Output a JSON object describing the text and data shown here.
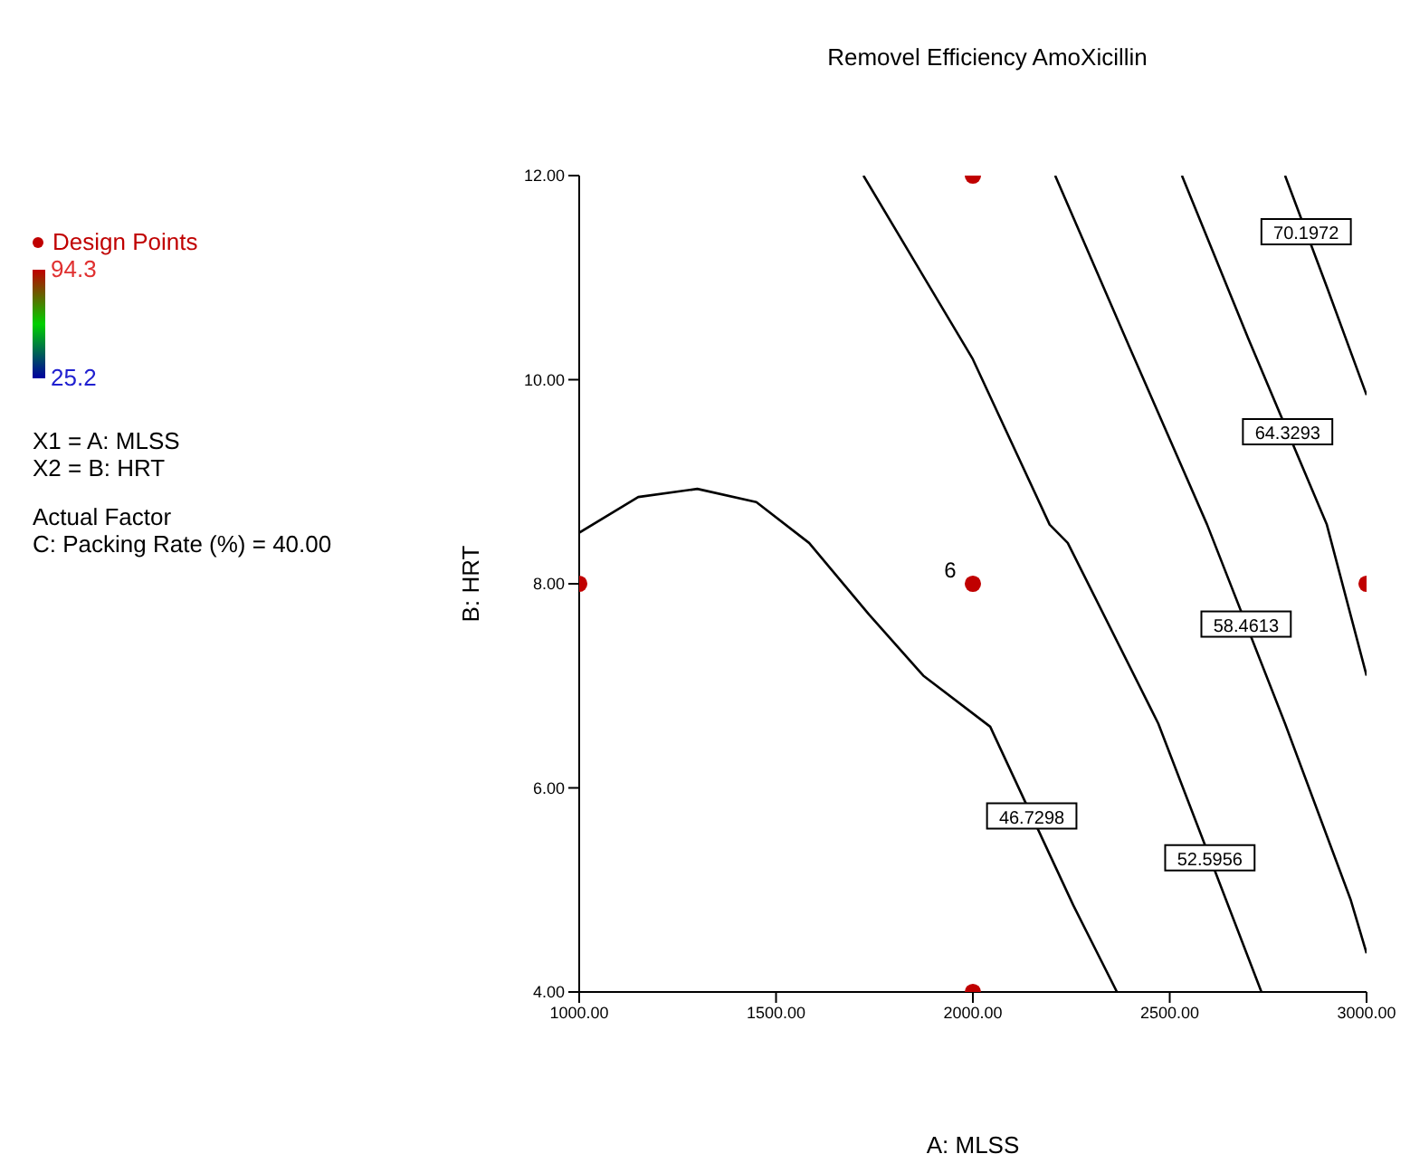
{
  "chart_data": {
    "type": "line",
    "title": "Removel Efficiency AmoXicillin",
    "xlabel": "A: MLSS",
    "ylabel": "B: HRT",
    "clim": [
      25.2,
      94.3
    ],
    "cticks": [
      25.2,
      94.3
    ],
    "xlim": [
      1000,
      3000
    ],
    "xticks": [
      {
        "value": 1000,
        "label": "1000.00"
      },
      {
        "value": 1500,
        "label": "1500.00"
      },
      {
        "value": 2000,
        "label": "2000.00"
      },
      {
        "value": 2500,
        "label": "2500.00"
      },
      {
        "value": 3000,
        "label": "3000.00"
      }
    ],
    "ylim": [
      4,
      12
    ],
    "yticks": [
      {
        "value": 4,
        "label": "4.00"
      },
      {
        "value": 6,
        "label": "6.00"
      },
      {
        "value": 8,
        "label": "8.00"
      },
      {
        "value": 10,
        "label": "10.00"
      },
      {
        "value": 12,
        "label": "12.00"
      }
    ],
    "grid": false,
    "legend": "left",
    "marker": "none",
    "line_style": "solid",
    "series": [
      {
        "name": "46.7298",
        "color": "#000000",
        "x": [
          1000,
          1150,
          1300,
          1450,
          1584,
          1736,
          1874,
          2044,
          2255,
          2366
        ],
        "values": [
          8.5,
          8.85,
          8.93,
          8.8,
          8.4,
          7.7,
          7.1,
          6.6,
          4.85,
          4.0
        ]
      },
      {
        "name": "52.5956",
        "color": "#000000",
        "x": [
          1722,
          2000,
          2195,
          2241,
          2471,
          2733
        ],
        "values": [
          12,
          10.2,
          8.58,
          8.4,
          6.63,
          4.0
        ]
      },
      {
        "name": "58.4613",
        "color": "#000000",
        "x": [
          2209,
          2400,
          2595,
          2793,
          2960,
          3000
        ],
        "values": [
          12,
          10.3,
          8.58,
          6.63,
          4.9,
          4.38
        ]
      },
      {
        "name": "64.3293",
        "color": "#000000",
        "x": [
          2531,
          2700,
          2899,
          3000
        ],
        "values": [
          12,
          10.4,
          8.58,
          7.1
        ]
      },
      {
        "name": "70.1972",
        "color": "#000000",
        "x": [
          2793,
          2900,
          3000
        ],
        "values": [
          12,
          10.9,
          9.85
        ]
      },
      {
        "type": "scatter",
        "name": "Design Points",
        "color": "#c00000",
        "marker": "circle",
        "x": [
          1000,
          2000,
          2000,
          2000,
          3000
        ],
        "values": [
          8,
          12,
          8,
          4,
          8
        ]
      }
    ],
    "annotations": [
      {
        "text": "6",
        "x": 2000,
        "y": 8
      },
      "X1 = A: MLSS",
      "X2 = B: HRT",
      "Actual Factor",
      "C: Packing Rate (%) = 40.00"
    ]
  }
}
